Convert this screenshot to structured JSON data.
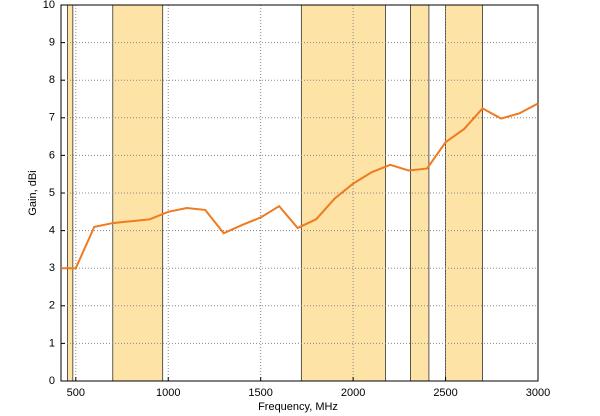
{
  "chart_data": {
    "type": "line",
    "x_label": "Frequency, MHz",
    "y_label": "Gain, dBi",
    "x": [
      420,
      500,
      600,
      700,
      800,
      900,
      1000,
      1100,
      1200,
      1300,
      1400,
      1500,
      1600,
      1700,
      1800,
      1900,
      2000,
      2100,
      2200,
      2300,
      2400,
      2500,
      2600,
      2700,
      2800,
      2900,
      3000
    ],
    "series": [
      {
        "color": "#f07a20",
        "values": [
          3.0,
          3.0,
          4.1,
          4.2,
          4.25,
          4.3,
          4.5,
          4.6,
          4.55,
          3.93,
          4.15,
          4.35,
          4.65,
          4.07,
          4.3,
          4.85,
          5.25,
          5.55,
          5.75,
          5.6,
          5.65,
          6.35,
          6.7,
          7.25,
          6.98,
          7.12,
          7.38
        ]
      }
    ],
    "bands": [
      [
        455,
        484
      ],
      [
        700,
        970
      ],
      [
        1720,
        2175
      ],
      [
        2310,
        2410
      ],
      [
        2500,
        2700
      ]
    ],
    "band_color": "#fde3a6",
    "xlim": [
      420,
      3000
    ],
    "xticks": [
      500,
      1000,
      1500,
      2000,
      2500,
      3000
    ],
    "ylim": [
      0,
      10
    ],
    "yticks": [
      0,
      1,
      2,
      3,
      4,
      5,
      6,
      7,
      8,
      9,
      10
    ],
    "grid": true
  }
}
